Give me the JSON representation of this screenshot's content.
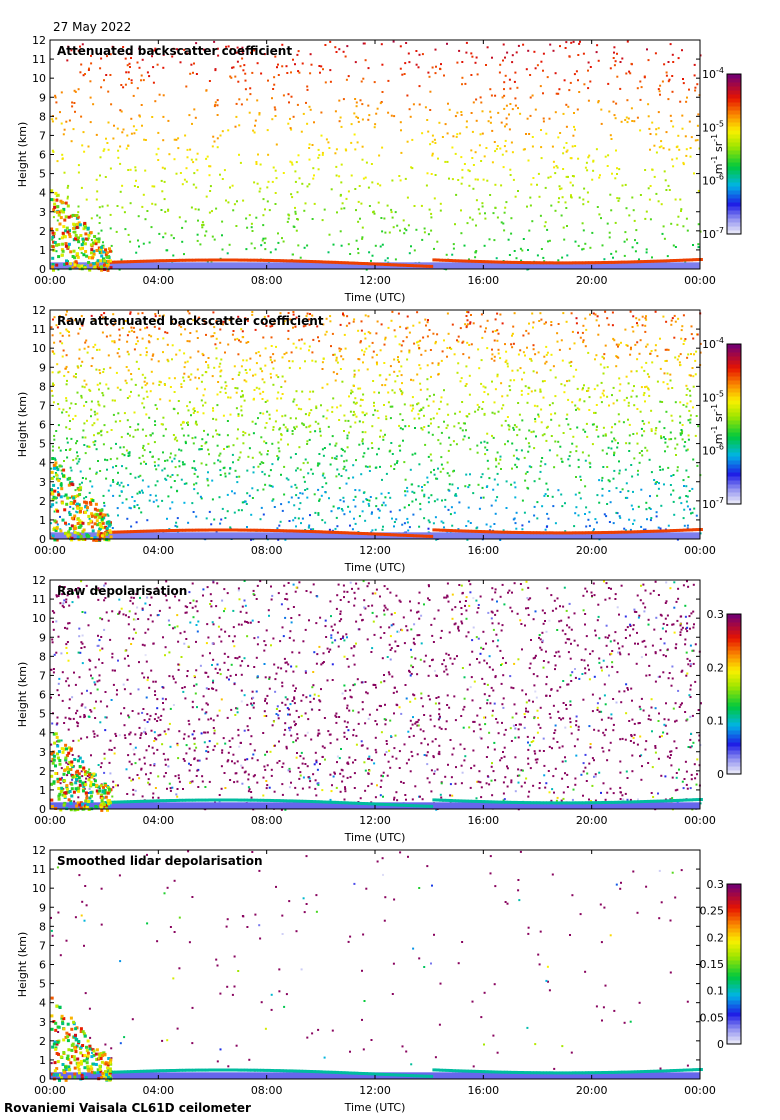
{
  "date": "27 May 2022",
  "footer": "Rovaniemi Vaisala CL61D ceilometer",
  "chart_data": [
    {
      "type": "heatmap",
      "title": "Attenuated backscatter coefficient",
      "xlabel": "Time (UTC)",
      "ylabel": "Height (km)",
      "x_ticks": [
        "00:00",
        "04:00",
        "08:00",
        "12:00",
        "16:00",
        "20:00",
        "00:00"
      ],
      "y_ticks": [
        0,
        1,
        2,
        3,
        4,
        5,
        6,
        7,
        8,
        9,
        10,
        11,
        12
      ],
      "ylim": [
        0,
        12
      ],
      "colorbar": {
        "scale": "log",
        "ticks": [
          "10",
          "10",
          "10",
          "10"
        ],
        "tick_exponents": [
          "-7",
          "-6",
          "-5",
          "-4"
        ],
        "unit": "m",
        "unit_parts": [
          "m",
          "-1",
          " sr",
          "-1"
        ]
      },
      "colormap": "rainbow",
      "noise_level": 0.55
    },
    {
      "type": "heatmap",
      "title": "Raw attenuated backscatter coefficient",
      "xlabel": "Time (UTC)",
      "ylabel": "Height (km)",
      "x_ticks": [
        "00:00",
        "04:00",
        "08:00",
        "12:00",
        "16:00",
        "20:00",
        "00:00"
      ],
      "y_ticks": [
        0,
        1,
        2,
        3,
        4,
        5,
        6,
        7,
        8,
        9,
        10,
        11,
        12
      ],
      "ylim": [
        0,
        12
      ],
      "colorbar": {
        "scale": "log",
        "ticks": [
          "10",
          "10",
          "10",
          "10"
        ],
        "tick_exponents": [
          "-7",
          "-6",
          "-5",
          "-4"
        ],
        "unit_parts": [
          "m",
          "-1",
          " sr",
          "-1"
        ]
      },
      "colormap": "rainbow",
      "noise_level": 1.0
    },
    {
      "type": "heatmap",
      "title": "Raw depolarisation",
      "xlabel": "Time (UTC)",
      "ylabel": "Height (km)",
      "x_ticks": [
        "00:00",
        "04:00",
        "08:00",
        "12:00",
        "16:00",
        "20:00",
        "00:00"
      ],
      "y_ticks": [
        0,
        1,
        2,
        3,
        4,
        5,
        6,
        7,
        8,
        9,
        10,
        11,
        12
      ],
      "ylim": [
        0,
        12
      ],
      "colorbar": {
        "scale": "linear",
        "ticks": [
          "0",
          "0.1",
          "0.2",
          "0.3"
        ]
      },
      "colormap": "rainbow",
      "noise_level": 0.9
    },
    {
      "type": "heatmap",
      "title": "Smoothed lidar depolarisation",
      "xlabel": "Time (UTC)",
      "ylabel": "Height (km)",
      "x_ticks": [
        "00:00",
        "04:00",
        "08:00",
        "12:00",
        "16:00",
        "20:00",
        "00:00"
      ],
      "y_ticks": [
        0,
        1,
        2,
        3,
        4,
        5,
        6,
        7,
        8,
        9,
        10,
        11,
        12
      ],
      "ylim": [
        0,
        12
      ],
      "colorbar": {
        "scale": "linear",
        "ticks": [
          "0",
          "0.05",
          "0.1",
          "0.15",
          "0.2",
          "0.25",
          "0.3"
        ]
      },
      "colormap": "rainbow",
      "noise_level": 0.08
    }
  ]
}
